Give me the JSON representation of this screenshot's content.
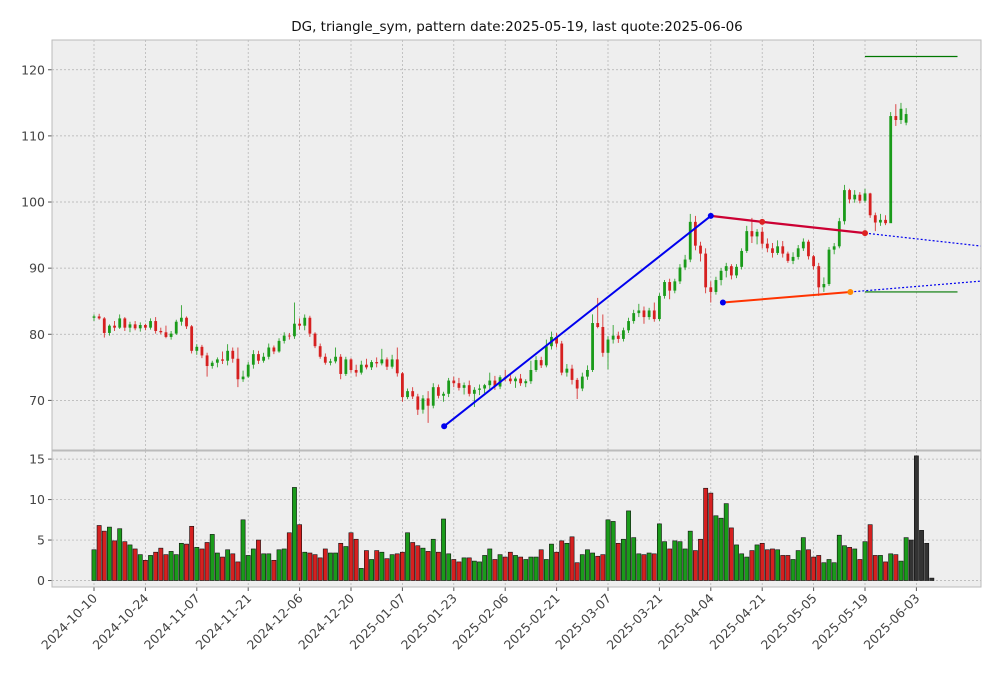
{
  "chart_data": {
    "type": "candlestick",
    "title": "DG, triangle_sym, pattern date:2025-05-19, last quote:2025-06-06",
    "grid": true,
    "colors": {
      "up": "#1a9b1a",
      "down": "#d62020",
      "pattern": "#0000ee",
      "upper_line": "#cc0033",
      "lower_line": "#ff3300",
      "level": "#007700",
      "dot": "#0000ee",
      "bg": "#eeeeee"
    },
    "price_axis": {
      "ylim": [
        62.5,
        124.5
      ],
      "ticks": [
        70,
        80,
        90,
        100,
        110,
        120
      ]
    },
    "volume_axis": {
      "ylim": [
        -0.8,
        16
      ],
      "ticks": [
        0,
        5,
        10,
        15
      ]
    },
    "x_ticks": [
      "2024-10-10",
      "2024-10-24",
      "2024-11-07",
      "2024-11-21",
      "2024-12-06",
      "2024-12-20",
      "2025-01-07",
      "2025-01-23",
      "2025-02-06",
      "2025-02-21",
      "2025-03-07",
      "2025-03-21",
      "2025-04-04",
      "2025-04-21",
      "2025-05-05",
      "2025-05-19",
      "2025-06-03"
    ],
    "segments": [
      {
        "name": "triangle upper",
        "points": [
          [
            "2025-04-04",
            97.9
          ],
          [
            "2025-04-21",
            97.0
          ],
          [
            "2025-05-19",
            95.3
          ]
        ]
      },
      {
        "name": "triangle lower",
        "points": [
          [
            "2025-04-08",
            84.8
          ],
          [
            "2025-05-15",
            86.4
          ]
        ]
      },
      {
        "name": "pattern leg",
        "points": [
          [
            "2025-01-20",
            66.1
          ],
          [
            "2025-04-04",
            97.9
          ]
        ]
      }
    ],
    "levels": [
      {
        "name": "target",
        "y": 122.0,
        "from": "2025-05-19",
        "to": "2025-06-15"
      },
      {
        "name": "stop",
        "y": 86.4,
        "from": "2025-05-19",
        "to": "2025-06-15"
      }
    ],
    "prices": [
      [
        82.5,
        83.0,
        82.0,
        82.7
      ],
      [
        82.7,
        83.1,
        82.2,
        82.4
      ],
      [
        82.4,
        82.6,
        79.5,
        80.2
      ],
      [
        80.2,
        81.5,
        79.8,
        81.3
      ],
      [
        81.3,
        82.0,
        80.5,
        81.0
      ],
      [
        81.0,
        83.0,
        80.8,
        82.4
      ],
      [
        82.4,
        82.6,
        80.5,
        81.0
      ],
      [
        81.0,
        81.9,
        80.3,
        81.5
      ],
      [
        81.5,
        82.0,
        80.6,
        80.9
      ],
      [
        80.9,
        81.8,
        80.4,
        81.4
      ],
      [
        81.4,
        81.6,
        80.6,
        81.0
      ],
      [
        81.0,
        82.4,
        80.7,
        82.0
      ],
      [
        82.0,
        82.6,
        80.1,
        80.5
      ],
      [
        80.5,
        81.0,
        80.0,
        80.3
      ],
      [
        80.3,
        81.3,
        79.4,
        79.6
      ],
      [
        79.6,
        80.5,
        79.2,
        80.1
      ],
      [
        80.1,
        82.2,
        79.9,
        81.9
      ],
      [
        81.9,
        84.4,
        81.3,
        82.5
      ],
      [
        82.5,
        82.7,
        80.8,
        81.2
      ],
      [
        81.2,
        81.4,
        77.1,
        77.5
      ],
      [
        77.5,
        78.5,
        76.9,
        78.1
      ],
      [
        78.1,
        78.4,
        76.4,
        76.8
      ],
      [
        76.8,
        77.2,
        73.6,
        75.2
      ],
      [
        75.2,
        76.0,
        74.8,
        75.7
      ],
      [
        75.7,
        76.5,
        75.0,
        76.2
      ],
      [
        76.2,
        77.4,
        75.5,
        76.0
      ],
      [
        76.0,
        78.5,
        75.3,
        77.5
      ],
      [
        77.5,
        78.0,
        75.7,
        76.3
      ],
      [
        76.3,
        78.0,
        72.0,
        73.2
      ],
      [
        73.2,
        74.5,
        72.8,
        73.6
      ],
      [
        73.6,
        75.8,
        73.4,
        75.4
      ],
      [
        75.4,
        77.6,
        74.8,
        77.0
      ],
      [
        77.0,
        77.5,
        75.5,
        76.0
      ],
      [
        76.0,
        77.2,
        75.7,
        76.6
      ],
      [
        76.6,
        78.6,
        76.2,
        78.0
      ],
      [
        78.0,
        78.3,
        77.0,
        77.4
      ],
      [
        77.4,
        79.4,
        77.2,
        79.0
      ],
      [
        79.0,
        80.3,
        78.6,
        79.8
      ],
      [
        79.8,
        80.2,
        79.2,
        79.7
      ],
      [
        79.7,
        84.8,
        79.3,
        81.6
      ],
      [
        81.6,
        82.4,
        80.7,
        81.3
      ],
      [
        81.3,
        83.0,
        80.6,
        82.5
      ],
      [
        82.5,
        82.8,
        79.6,
        80.1
      ],
      [
        80.1,
        80.3,
        77.9,
        78.2
      ],
      [
        78.2,
        78.6,
        76.3,
        76.6
      ],
      [
        76.6,
        77.1,
        75.4,
        75.7
      ],
      [
        75.7,
        76.3,
        75.3,
        75.9
      ],
      [
        75.9,
        78.0,
        75.6,
        76.6
      ],
      [
        76.6,
        77.0,
        73.2,
        74.0
      ],
      [
        74.0,
        76.6,
        73.7,
        76.2
      ],
      [
        76.2,
        76.4,
        74.2,
        74.6
      ],
      [
        74.6,
        75.4,
        73.6,
        74.2
      ],
      [
        74.2,
        76.0,
        73.9,
        75.4
      ],
      [
        75.4,
        76.3,
        74.7,
        75.0
      ],
      [
        75.0,
        76.1,
        74.6,
        75.8
      ],
      [
        75.8,
        76.5,
        75.0,
        75.6
      ],
      [
        75.6,
        77.8,
        75.3,
        76.2
      ],
      [
        76.2,
        76.5,
        74.6,
        75.1
      ],
      [
        75.1,
        76.9,
        74.8,
        76.2
      ],
      [
        76.2,
        78.0,
        73.6,
        74.1
      ],
      [
        74.1,
        74.3,
        69.8,
        70.5
      ],
      [
        70.5,
        71.8,
        70.2,
        71.4
      ],
      [
        71.4,
        72.0,
        70.2,
        70.6
      ],
      [
        70.6,
        71.0,
        67.8,
        68.6
      ],
      [
        68.6,
        70.8,
        68.0,
        70.3
      ],
      [
        70.3,
        71.4,
        66.6,
        69.2
      ],
      [
        69.2,
        72.6,
        68.8,
        72.0
      ],
      [
        72.0,
        72.4,
        70.3,
        70.7
      ],
      [
        70.7,
        71.3,
        69.8,
        71.0
      ],
      [
        71.0,
        73.4,
        70.5,
        73.0
      ],
      [
        73.0,
        73.6,
        72.0,
        72.6
      ],
      [
        72.6,
        73.4,
        71.5,
        71.9
      ],
      [
        71.9,
        72.7,
        70.9,
        72.3
      ],
      [
        72.3,
        73.0,
        70.6,
        71.0
      ],
      [
        71.0,
        72.0,
        69.0,
        71.6
      ],
      [
        71.6,
        72.4,
        70.8,
        71.8
      ],
      [
        71.8,
        72.5,
        71.1,
        72.3
      ],
      [
        72.3,
        74.2,
        71.5,
        73.0
      ],
      [
        73.0,
        73.7,
        71.6,
        72.1
      ],
      [
        72.1,
        73.8,
        71.7,
        73.5
      ],
      [
        73.5,
        74.6,
        72.9,
        73.3
      ],
      [
        73.3,
        74.1,
        72.5,
        72.9
      ],
      [
        72.9,
        73.6,
        71.9,
        73.3
      ],
      [
        73.3,
        74.0,
        72.2,
        72.6
      ],
      [
        72.6,
        73.2,
        72.0,
        72.9
      ],
      [
        72.9,
        76.0,
        72.5,
        74.6
      ],
      [
        74.6,
        76.7,
        74.3,
        76.1
      ],
      [
        76.1,
        76.6,
        74.9,
        75.3
      ],
      [
        75.3,
        79.2,
        75.0,
        78.2
      ],
      [
        78.2,
        80.4,
        77.7,
        79.6
      ],
      [
        79.6,
        80.2,
        78.0,
        78.6
      ],
      [
        78.6,
        79.0,
        73.8,
        74.2
      ],
      [
        74.2,
        75.5,
        73.6,
        74.8
      ],
      [
        74.8,
        75.4,
        72.4,
        73.1
      ],
      [
        73.1,
        73.4,
        70.2,
        71.8
      ],
      [
        71.8,
        74.2,
        71.4,
        73.6
      ],
      [
        73.6,
        75.3,
        73.1,
        74.6
      ],
      [
        74.6,
        83.0,
        74.3,
        81.7
      ],
      [
        81.7,
        85.5,
        80.9,
        81.1
      ],
      [
        81.1,
        83.0,
        76.6,
        77.2
      ],
      [
        77.2,
        79.7,
        74.7,
        79.2
      ],
      [
        79.2,
        81.4,
        78.6,
        79.8
      ],
      [
        79.8,
        80.4,
        78.7,
        79.3
      ],
      [
        79.3,
        81.0,
        78.9,
        80.6
      ],
      [
        80.6,
        82.5,
        80.2,
        82.0
      ],
      [
        82.0,
        83.7,
        81.6,
        83.2
      ],
      [
        83.2,
        84.6,
        82.6,
        83.6
      ],
      [
        83.6,
        84.2,
        81.6,
        82.6
      ],
      [
        82.6,
        84.0,
        82.2,
        83.6
      ],
      [
        83.6,
        84.8,
        81.9,
        82.3
      ],
      [
        82.3,
        86.2,
        82.0,
        85.8
      ],
      [
        85.8,
        88.2,
        85.4,
        87.9
      ],
      [
        87.9,
        88.4,
        85.3,
        86.6
      ],
      [
        86.6,
        88.4,
        86.2,
        88.0
      ],
      [
        88.0,
        90.6,
        87.6,
        90.1
      ],
      [
        90.1,
        92.0,
        89.7,
        91.3
      ],
      [
        91.3,
        98.2,
        90.9,
        97.0
      ],
      [
        97.0,
        97.9,
        92.7,
        93.4
      ],
      [
        93.4,
        94.0,
        91.0,
        92.2
      ],
      [
        92.2,
        93.0,
        86.2,
        87.1
      ],
      [
        87.1,
        88.0,
        84.8,
        86.4
      ],
      [
        86.4,
        88.7,
        86.0,
        88.2
      ],
      [
        88.2,
        90.0,
        87.4,
        89.6
      ],
      [
        89.6,
        90.8,
        88.6,
        90.3
      ],
      [
        90.3,
        90.6,
        88.3,
        88.9
      ],
      [
        88.9,
        90.6,
        88.5,
        90.2
      ],
      [
        90.2,
        93.0,
        89.8,
        92.6
      ],
      [
        92.6,
        96.4,
        92.3,
        95.6
      ],
      [
        95.6,
        97.6,
        93.8,
        94.8
      ],
      [
        94.8,
        95.9,
        93.6,
        95.5
      ],
      [
        95.5,
        96.2,
        93.0,
        93.7
      ],
      [
        93.7,
        94.5,
        92.4,
        93.0
      ],
      [
        93.0,
        93.8,
        91.6,
        92.3
      ],
      [
        92.3,
        94.2,
        92.0,
        93.3
      ],
      [
        93.3,
        94.1,
        91.6,
        92.2
      ],
      [
        92.2,
        92.5,
        90.8,
        91.1
      ],
      [
        91.1,
        92.4,
        90.6,
        91.7
      ],
      [
        91.7,
        93.5,
        91.3,
        93.0
      ],
      [
        93.0,
        94.5,
        92.6,
        94.0
      ],
      [
        94.0,
        94.3,
        91.3,
        91.8
      ],
      [
        91.8,
        92.0,
        89.8,
        90.3
      ],
      [
        90.3,
        90.8,
        85.8,
        87.1
      ],
      [
        87.1,
        88.6,
        86.4,
        87.6
      ],
      [
        87.6,
        93.2,
        87.3,
        92.8
      ],
      [
        92.8,
        93.8,
        92.1,
        93.3
      ],
      [
        93.3,
        97.6,
        93.0,
        97.1
      ],
      [
        97.1,
        102.6,
        96.6,
        101.8
      ],
      [
        101.8,
        102.0,
        99.8,
        100.4
      ],
      [
        100.4,
        101.8,
        99.9,
        101.1
      ],
      [
        101.1,
        101.5,
        99.8,
        100.2
      ],
      [
        100.2,
        102.0,
        99.9,
        101.3
      ],
      [
        101.3,
        101.4,
        97.6,
        98.0
      ],
      [
        98.0,
        98.4,
        95.6,
        96.9
      ],
      [
        96.9,
        98.2,
        96.4,
        97.3
      ],
      [
        97.3,
        98.0,
        96.5,
        96.8
      ],
      [
        96.8,
        113.6,
        106.6,
        113.0
      ],
      [
        113.0,
        114.8,
        111.5,
        112.4
      ],
      [
        112.4,
        115.0,
        111.8,
        114.1
      ],
      [
        112.0,
        114.2,
        111.6,
        113.3
      ]
    ],
    "volumes": [
      3.8,
      6.8,
      6.1,
      6.6,
      4.9,
      6.4,
      4.8,
      4.4,
      3.9,
      3.2,
      2.5,
      3.1,
      3.5,
      4.0,
      3.2,
      3.6,
      3.2,
      4.6,
      4.5,
      6.7,
      4.1,
      3.9,
      4.7,
      5.7,
      3.4,
      2.9,
      3.8,
      3.3,
      2.3,
      7.5,
      3.1,
      3.9,
      5.0,
      3.3,
      3.3,
      2.5,
      3.8,
      3.9,
      5.9,
      11.5,
      6.9,
      3.5,
      3.4,
      3.2,
      2.8,
      3.9,
      3.4,
      3.4,
      4.6,
      4.2,
      5.9,
      5.1,
      1.5,
      3.7,
      2.6,
      3.7,
      3.5,
      2.7,
      3.2,
      3.3,
      3.5,
      5.9,
      4.7,
      4.3,
      4.0,
      3.6,
      5.1,
      3.5,
      7.6,
      3.3,
      2.6,
      2.3,
      2.8,
      2.8,
      2.4,
      2.3,
      3.1,
      3.9,
      2.6,
      3.2,
      2.9,
      3.5,
      3.1,
      2.9,
      2.6,
      2.9,
      2.9,
      3.8,
      2.6,
      4.5,
      3.5,
      4.9,
      4.6,
      5.4,
      2.2,
      3.2,
      3.8,
      3.4,
      3.0,
      3.2,
      7.5,
      7.3,
      4.6,
      5.1,
      8.6,
      5.3,
      3.3,
      3.2,
      3.4,
      3.3,
      7.0,
      4.8,
      3.9,
      4.9,
      4.8,
      3.9,
      6.1,
      3.7,
      5.1,
      11.4,
      10.8,
      8.0,
      7.7,
      9.5,
      6.5,
      4.4,
      3.3,
      2.9,
      3.7,
      4.4,
      4.6,
      3.8,
      3.9,
      3.8,
      3.1,
      3.1,
      2.6,
      3.7,
      5.3,
      3.8,
      2.9,
      3.1,
      2.2,
      2.6,
      2.2,
      5.6,
      4.3,
      4.1,
      3.9,
      2.6,
      4.8,
      6.9,
      3.1,
      3.1,
      2.3,
      3.3,
      3.2,
      2.4,
      5.3,
      5.0,
      15.4,
      6.2,
      4.6,
      0.3
    ]
  }
}
